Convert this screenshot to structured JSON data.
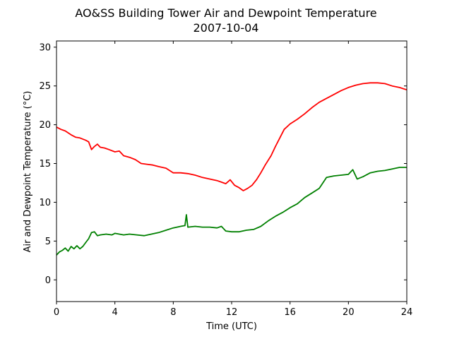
{
  "chart_data": {
    "type": "line",
    "title": "AO&SS Building Tower Air and Dewpoint Temperature",
    "subtitle": "2007-10-04",
    "xlabel": "Time (UTC)",
    "ylabel": "Air and Dewpoint Temperature (°C)",
    "xlim": [
      0,
      24
    ],
    "ylim": [
      -2.8,
      30.8
    ],
    "xticks": [
      0,
      4,
      8,
      12,
      16,
      20,
      24
    ],
    "yticks": [
      0,
      5,
      10,
      15,
      20,
      25,
      30
    ],
    "grid": false,
    "legend": "none",
    "series": [
      {
        "color": "#ff0000",
        "x": [
          0,
          0.3,
          0.6,
          1.0,
          1.3,
          1.6,
          2.0,
          2.2,
          2.4,
          2.6,
          2.8,
          3.0,
          3.3,
          3.6,
          4.0,
          4.3,
          4.6,
          5.0,
          5.4,
          5.8,
          6.2,
          6.6,
          7.0,
          7.5,
          8.0,
          8.5,
          9.0,
          9.5,
          10.0,
          10.5,
          11.0,
          11.3,
          11.6,
          11.9,
          12.2,
          12.5,
          12.8,
          13.1,
          13.4,
          13.7,
          14.0,
          14.3,
          14.7,
          15.0,
          15.3,
          15.6,
          16.0,
          16.5,
          17.0,
          17.5,
          18.0,
          18.5,
          19.0,
          19.5,
          20.0,
          20.5,
          21.0,
          21.5,
          22.0,
          22.5,
          23.0,
          23.5,
          24.0
        ],
        "y": [
          19.7,
          19.4,
          19.2,
          18.7,
          18.4,
          18.3,
          18.0,
          17.8,
          16.8,
          17.2,
          17.5,
          17.1,
          17.0,
          16.8,
          16.5,
          16.6,
          16.0,
          15.8,
          15.5,
          15.0,
          14.9,
          14.8,
          14.6,
          14.4,
          13.8,
          13.8,
          13.7,
          13.5,
          13.2,
          13.0,
          12.8,
          12.6,
          12.4,
          12.9,
          12.2,
          11.9,
          11.5,
          11.8,
          12.2,
          12.9,
          13.8,
          14.8,
          16.0,
          17.2,
          18.3,
          19.4,
          20.1,
          20.7,
          21.4,
          22.2,
          22.9,
          23.4,
          23.9,
          24.4,
          24.8,
          25.1,
          25.3,
          25.4,
          25.4,
          25.3,
          25.0,
          24.8,
          24.5
        ]
      },
      {
        "color": "#008000",
        "x": [
          0,
          0.2,
          0.4,
          0.6,
          0.8,
          1.0,
          1.2,
          1.4,
          1.6,
          1.8,
          2.0,
          2.2,
          2.4,
          2.6,
          2.8,
          3.0,
          3.4,
          3.8,
          4.0,
          4.3,
          4.6,
          5.0,
          5.5,
          6.0,
          6.5,
          7.0,
          7.5,
          8.0,
          8.5,
          8.8,
          8.9,
          9.0,
          9.5,
          10.0,
          10.5,
          11.0,
          11.3,
          11.6,
          12.0,
          12.5,
          13.0,
          13.5,
          14.0,
          14.5,
          15.0,
          15.5,
          16.0,
          16.5,
          17.0,
          17.5,
          18.0,
          18.5,
          19.0,
          19.5,
          20.0,
          20.3,
          20.6,
          21.0,
          21.5,
          22.0,
          22.5,
          23.0,
          23.5,
          24.0
        ],
        "y": [
          3.2,
          3.6,
          3.8,
          4.1,
          3.7,
          4.3,
          4.0,
          4.4,
          4.0,
          4.3,
          4.8,
          5.3,
          6.1,
          6.2,
          5.7,
          5.8,
          5.9,
          5.8,
          6.0,
          5.9,
          5.8,
          5.9,
          5.8,
          5.7,
          5.9,
          6.1,
          6.4,
          6.7,
          6.9,
          7.0,
          8.4,
          6.8,
          6.9,
          6.8,
          6.8,
          6.7,
          6.9,
          6.3,
          6.2,
          6.2,
          6.4,
          6.5,
          6.9,
          7.6,
          8.2,
          8.7,
          9.3,
          9.8,
          10.6,
          11.2,
          11.8,
          13.2,
          13.4,
          13.5,
          13.6,
          14.2,
          13.0,
          13.3,
          13.8,
          14.0,
          14.1,
          14.3,
          14.5,
          14.5
        ]
      }
    ]
  }
}
